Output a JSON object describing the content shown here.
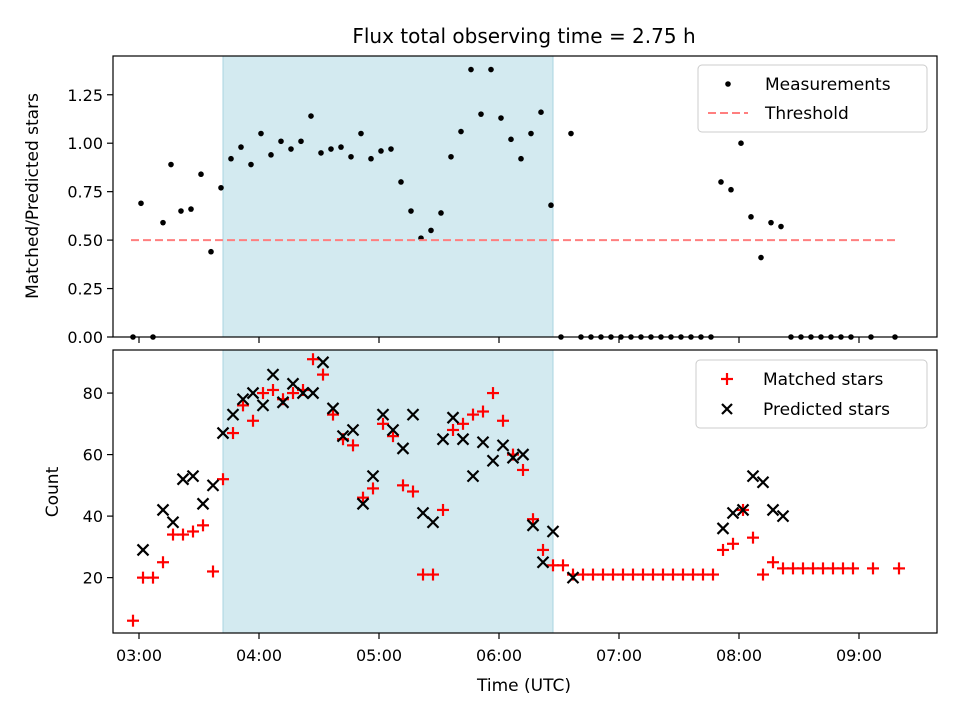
{
  "chart_data": [
    {
      "type": "scatter",
      "title": "Flux total observing time = 2.75 h",
      "xlabel": "",
      "ylabel": "Matched/Predicted stars",
      "x_unit": "time (UTC)",
      "xlim": [
        "02:47",
        "09:39"
      ],
      "ylim": [
        0,
        1.45
      ],
      "x_tick_labels": [
        "03:00",
        "04:00",
        "05:00",
        "06:00",
        "07:00",
        "08:00",
        "09:00"
      ],
      "y_ticks": [
        "0.00",
        "0.25",
        "0.50",
        "0.75",
        "1.00",
        "1.25"
      ],
      "shaded_interval": [
        "03:42",
        "06:27"
      ],
      "shade_color": "#d3eaf0",
      "legend_position": "top-right",
      "series": [
        {
          "name": "Measurements",
          "kind": "points",
          "color": "#000000",
          "points": [
            [
              "02:57",
              0.0
            ],
            [
              "03:01",
              0.69
            ],
            [
              "03:07",
              0.0
            ],
            [
              "03:12",
              0.59
            ],
            [
              "03:16",
              0.89
            ],
            [
              "03:21",
              0.65
            ],
            [
              "03:26",
              0.66
            ],
            [
              "03:31",
              0.84
            ],
            [
              "03:36",
              0.44
            ],
            [
              "03:41",
              0.77
            ],
            [
              "03:46",
              0.92
            ],
            [
              "03:51",
              0.98
            ],
            [
              "03:56",
              0.89
            ],
            [
              "04:01",
              1.05
            ],
            [
              "04:06",
              0.94
            ],
            [
              "04:11",
              1.01
            ],
            [
              "04:16",
              0.97
            ],
            [
              "04:21",
              1.01
            ],
            [
              "04:26",
              1.14
            ],
            [
              "04:31",
              0.95
            ],
            [
              "04:36",
              0.97
            ],
            [
              "04:41",
              0.98
            ],
            [
              "04:46",
              0.93
            ],
            [
              "04:51",
              1.05
            ],
            [
              "04:56",
              0.92
            ],
            [
              "05:01",
              0.96
            ],
            [
              "05:06",
              0.97
            ],
            [
              "05:11",
              0.8
            ],
            [
              "05:16",
              0.65
            ],
            [
              "05:21",
              0.51
            ],
            [
              "05:26",
              0.55
            ],
            [
              "05:31",
              0.64
            ],
            [
              "05:36",
              0.93
            ],
            [
              "05:41",
              1.06
            ],
            [
              "05:46",
              1.38
            ],
            [
              "05:51",
              1.15
            ],
            [
              "05:56",
              1.38
            ],
            [
              "06:01",
              1.13
            ],
            [
              "06:06",
              1.02
            ],
            [
              "06:11",
              0.92
            ],
            [
              "06:16",
              1.05
            ],
            [
              "06:21",
              1.16
            ],
            [
              "06:26",
              0.68
            ],
            [
              "06:31",
              0.0
            ],
            [
              "06:36",
              1.05
            ],
            [
              "06:41",
              0.0
            ],
            [
              "06:46",
              0.0
            ],
            [
              "06:51",
              0.0
            ],
            [
              "06:56",
              0.0
            ],
            [
              "07:01",
              0.0
            ],
            [
              "07:06",
              0.0
            ],
            [
              "07:11",
              0.0
            ],
            [
              "07:16",
              0.0
            ],
            [
              "07:21",
              0.0
            ],
            [
              "07:26",
              0.0
            ],
            [
              "07:31",
              0.0
            ],
            [
              "07:36",
              0.0
            ],
            [
              "07:41",
              0.0
            ],
            [
              "07:46",
              0.0
            ],
            [
              "07:51",
              0.8
            ],
            [
              "07:56",
              0.76
            ],
            [
              "08:01",
              1.0
            ],
            [
              "08:06",
              0.62
            ],
            [
              "08:11",
              0.41
            ],
            [
              "08:16",
              0.59
            ],
            [
              "08:21",
              0.57
            ],
            [
              "08:26",
              0.0
            ],
            [
              "08:31",
              0.0
            ],
            [
              "08:36",
              0.0
            ],
            [
              "08:41",
              0.0
            ],
            [
              "08:46",
              0.0
            ],
            [
              "08:51",
              0.0
            ],
            [
              "08:56",
              0.0
            ],
            [
              "09:06",
              0.0
            ],
            [
              "09:18",
              0.0
            ]
          ]
        },
        {
          "name": "Threshold",
          "kind": "dashed-line",
          "color": "#ff7f7f",
          "points": [
            [
              "02:56",
              0.5
            ],
            [
              "09:20",
              0.5
            ]
          ]
        }
      ]
    },
    {
      "type": "scatter",
      "title": "",
      "xlabel": "Time (UTC)",
      "ylabel": "Count",
      "x_unit": "time (UTC)",
      "xlim": [
        "02:47",
        "09:39"
      ],
      "ylim": [
        2,
        94
      ],
      "x_tick_labels": [
        "03:00",
        "04:00",
        "05:00",
        "06:00",
        "07:00",
        "08:00",
        "09:00"
      ],
      "y_ticks": [
        "20",
        "40",
        "60",
        "80"
      ],
      "shaded_interval": [
        "03:42",
        "06:27"
      ],
      "shade_color": "#d3eaf0",
      "legend_position": "top-right",
      "series": [
        {
          "name": "Matched stars",
          "kind": "plus",
          "color": "#ff0000",
          "points": [
            [
              "02:57",
              6
            ],
            [
              "03:02",
              20
            ],
            [
              "03:07",
              20
            ],
            [
              "03:12",
              25
            ],
            [
              "03:17",
              34
            ],
            [
              "03:22",
              34
            ],
            [
              "03:27",
              35
            ],
            [
              "03:32",
              37
            ],
            [
              "03:37",
              22
            ],
            [
              "03:42",
              52
            ],
            [
              "03:47",
              67
            ],
            [
              "03:52",
              76
            ],
            [
              "03:57",
              71
            ],
            [
              "04:02",
              80
            ],
            [
              "04:07",
              81
            ],
            [
              "04:12",
              78
            ],
            [
              "04:17",
              80
            ],
            [
              "04:22",
              81
            ],
            [
              "04:27",
              91
            ],
            [
              "04:32",
              86
            ],
            [
              "04:37",
              73
            ],
            [
              "04:42",
              65
            ],
            [
              "04:47",
              63
            ],
            [
              "04:52",
              46
            ],
            [
              "04:57",
              49
            ],
            [
              "05:02",
              70
            ],
            [
              "05:07",
              66
            ],
            [
              "05:12",
              50
            ],
            [
              "05:17",
              48
            ],
            [
              "05:22",
              21
            ],
            [
              "05:27",
              21
            ],
            [
              "05:32",
              42
            ],
            [
              "05:37",
              68
            ],
            [
              "05:42",
              70
            ],
            [
              "05:47",
              73
            ],
            [
              "05:52",
              74
            ],
            [
              "05:57",
              80
            ],
            [
              "06:02",
              71
            ],
            [
              "06:07",
              60
            ],
            [
              "06:12",
              55
            ],
            [
              "06:17",
              39
            ],
            [
              "06:22",
              29
            ],
            [
              "06:27",
              24
            ],
            [
              "06:32",
              24
            ],
            [
              "06:37",
              21
            ],
            [
              "06:42",
              21
            ],
            [
              "06:47",
              21
            ],
            [
              "06:52",
              21
            ],
            [
              "06:57",
              21
            ],
            [
              "07:02",
              21
            ],
            [
              "07:07",
              21
            ],
            [
              "07:12",
              21
            ],
            [
              "07:17",
              21
            ],
            [
              "07:22",
              21
            ],
            [
              "07:27",
              21
            ],
            [
              "07:32",
              21
            ],
            [
              "07:37",
              21
            ],
            [
              "07:42",
              21
            ],
            [
              "07:47",
              21
            ],
            [
              "07:52",
              29
            ],
            [
              "07:57",
              31
            ],
            [
              "08:02",
              42
            ],
            [
              "08:07",
              33
            ],
            [
              "08:12",
              21
            ],
            [
              "08:17",
              25
            ],
            [
              "08:22",
              23
            ],
            [
              "08:27",
              23
            ],
            [
              "08:32",
              23
            ],
            [
              "08:37",
              23
            ],
            [
              "08:42",
              23
            ],
            [
              "08:47",
              23
            ],
            [
              "08:52",
              23
            ],
            [
              "08:57",
              23
            ],
            [
              "09:07",
              23
            ],
            [
              "09:20",
              23
            ]
          ]
        },
        {
          "name": "Predicted stars",
          "kind": "x",
          "color": "#000000",
          "points": [
            [
              "03:02",
              29
            ],
            [
              "03:12",
              42
            ],
            [
              "03:17",
              38
            ],
            [
              "03:22",
              52
            ],
            [
              "03:27",
              53
            ],
            [
              "03:32",
              44
            ],
            [
              "03:37",
              50
            ],
            [
              "03:42",
              67
            ],
            [
              "03:47",
              73
            ],
            [
              "03:52",
              78
            ],
            [
              "03:57",
              80
            ],
            [
              "04:02",
              76
            ],
            [
              "04:07",
              86
            ],
            [
              "04:12",
              77
            ],
            [
              "04:17",
              83
            ],
            [
              "04:22",
              80
            ],
            [
              "04:27",
              80
            ],
            [
              "04:32",
              90
            ],
            [
              "04:37",
              75
            ],
            [
              "04:42",
              66
            ],
            [
              "04:47",
              68
            ],
            [
              "04:52",
              44
            ],
            [
              "04:57",
              53
            ],
            [
              "05:02",
              73
            ],
            [
              "05:07",
              68
            ],
            [
              "05:12",
              62
            ],
            [
              "05:17",
              73
            ],
            [
              "05:22",
              41
            ],
            [
              "05:27",
              38
            ],
            [
              "05:32",
              65
            ],
            [
              "05:37",
              72
            ],
            [
              "05:42",
              65
            ],
            [
              "05:47",
              53
            ],
            [
              "05:52",
              64
            ],
            [
              "05:57",
              58
            ],
            [
              "06:02",
              63
            ],
            [
              "06:07",
              59
            ],
            [
              "06:12",
              60
            ],
            [
              "06:17",
              37
            ],
            [
              "06:22",
              25
            ],
            [
              "06:27",
              35
            ],
            [
              "06:37",
              20
            ],
            [
              "07:52",
              36
            ],
            [
              "07:57",
              41
            ],
            [
              "08:02",
              42
            ],
            [
              "08:07",
              53
            ],
            [
              "08:12",
              51
            ],
            [
              "08:17",
              42
            ],
            [
              "08:22",
              40
            ]
          ]
        }
      ]
    }
  ]
}
